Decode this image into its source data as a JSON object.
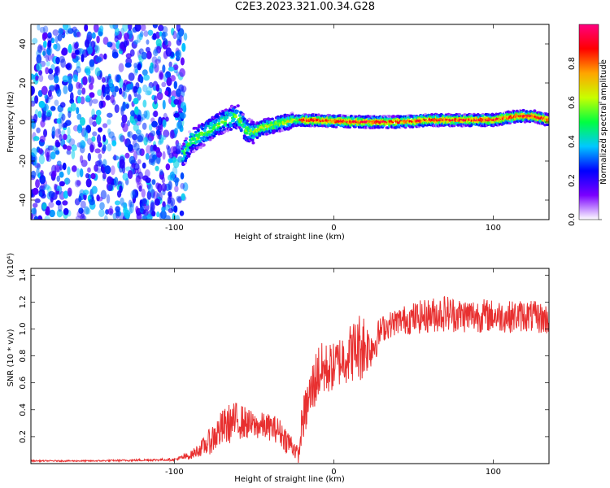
{
  "title": "C2E3.2023.321.00.34.G28",
  "chart_data": [
    {
      "type": "heatmap",
      "xlabel": "Height of straight line (km)",
      "ylabel": "Frequency (Hz)",
      "xlim": [
        -190,
        135
      ],
      "ylim": [
        -50,
        50
      ],
      "x_ticks": [
        -100,
        0,
        100
      ],
      "y_ticks": [
        -40,
        -20,
        0,
        20,
        40
      ],
      "colorbar": {
        "label": "Normalized spectral amplitude",
        "range": [
          0,
          1
        ],
        "ticks": [
          0.0,
          0.2,
          0.4,
          0.6,
          0.8
        ],
        "colors": [
          "#ffffff",
          "#7a00ff",
          "#0000ff",
          "#00c8ff",
          "#00ff40",
          "#c8ff00",
          "#ffa500",
          "#ff0000",
          "#ff0080"
        ]
      },
      "noise_region_x": [
        -190,
        -93
      ],
      "ridge": [
        {
          "x": -95,
          "y": -18
        },
        {
          "x": -90,
          "y": -10
        },
        {
          "x": -85,
          "y": -8
        },
        {
          "x": -80,
          "y": -5
        },
        {
          "x": -75,
          "y": -3
        },
        {
          "x": -70,
          "y": 0
        },
        {
          "x": -65,
          "y": 2
        },
        {
          "x": -60,
          "y": 3
        },
        {
          "x": -55,
          "y": -4
        },
        {
          "x": -50,
          "y": -5
        },
        {
          "x": -45,
          "y": -3
        },
        {
          "x": -40,
          "y": -2
        },
        {
          "x": -35,
          "y": -1
        },
        {
          "x": -30,
          "y": 0
        },
        {
          "x": -25,
          "y": 1
        },
        {
          "x": -20,
          "y": 1
        },
        {
          "x": 0,
          "y": 0.5
        },
        {
          "x": 20,
          "y": 0
        },
        {
          "x": 40,
          "y": 0
        },
        {
          "x": 60,
          "y": 1
        },
        {
          "x": 80,
          "y": 1
        },
        {
          "x": 100,
          "y": 1
        },
        {
          "x": 115,
          "y": 3
        },
        {
          "x": 125,
          "y": 3
        },
        {
          "x": 135,
          "y": 1
        }
      ]
    },
    {
      "type": "line",
      "xlabel": "Height of straight line (km)",
      "ylabel": "SNR (10 * v/v)",
      "y_multiplier": "(x10⁴)",
      "xlim": [
        -190,
        135
      ],
      "ylim": [
        0,
        1.45
      ],
      "x_ticks": [
        -100,
        0,
        100
      ],
      "y_ticks": [
        0.2,
        0.4,
        0.6,
        0.8,
        1.0,
        1.2,
        1.4
      ],
      "color": "#e83030",
      "series": [
        {
          "x": [
            -190,
            -150,
            -100,
            -90,
            -85,
            -80,
            -75,
            -70,
            -65,
            -60,
            -55,
            -50,
            -45,
            -40,
            -35,
            -30,
            -25,
            -22,
            -20,
            -15,
            -10,
            -5,
            0,
            5,
            10,
            15,
            18,
            20,
            25,
            30,
            40,
            50,
            60,
            70,
            80,
            90,
            100,
            110,
            120,
            130,
            135
          ],
          "y": [
            0.02,
            0.02,
            0.03,
            0.06,
            0.1,
            0.14,
            0.2,
            0.26,
            0.3,
            0.32,
            0.3,
            0.28,
            0.28,
            0.27,
            0.25,
            0.18,
            0.12,
            0.05,
            0.3,
            0.5,
            0.68,
            0.7,
            0.72,
            0.78,
            0.82,
            0.86,
            0.9,
            0.86,
            0.88,
            1.0,
            1.06,
            1.08,
            1.1,
            1.12,
            1.1,
            1.1,
            1.1,
            1.09,
            1.1,
            1.08,
            1.07
          ],
          "noise": [
            0.005,
            0.005,
            0.01,
            0.03,
            0.05,
            0.08,
            0.12,
            0.14,
            0.15,
            0.14,
            0.12,
            0.1,
            0.1,
            0.1,
            0.1,
            0.1,
            0.08,
            0.05,
            0.15,
            0.2,
            0.22,
            0.2,
            0.18,
            0.2,
            0.22,
            0.24,
            0.3,
            0.2,
            0.15,
            0.1,
            0.1,
            0.12,
            0.13,
            0.14,
            0.13,
            0.13,
            0.12,
            0.12,
            0.12,
            0.12,
            0.12
          ]
        }
      ]
    }
  ]
}
